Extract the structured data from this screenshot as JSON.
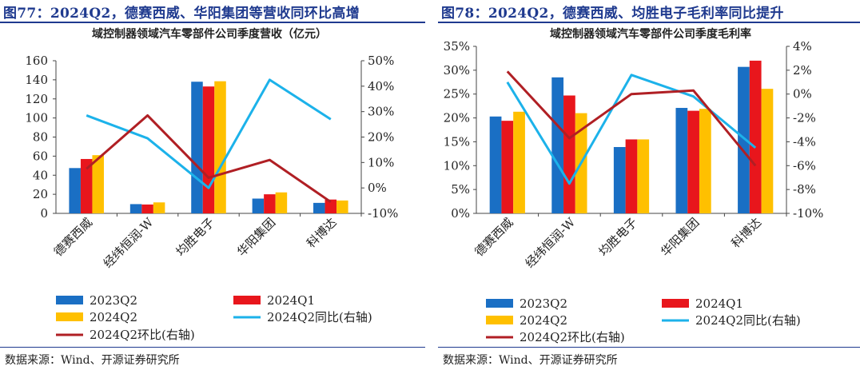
{
  "colors": {
    "accent": "#1f3a8f",
    "q2_2023": "#1a6fc4",
    "q1_2024": "#e8161c",
    "q2_2024": "#ffc000",
    "yoy": "#1cb2ea",
    "qoq": "#b01f24"
  },
  "charts": [
    {
      "fig_title": "图77：2024Q2，德赛西威、华阳集团等营收同环比高增",
      "source": "数据来源：Wind、开源证券研究所",
      "chart_data": {
        "type": "bar",
        "title": "域控制器领域汽车零部件公司季度营收（亿元）",
        "categories": [
          "德赛西威",
          "经纬恒润-W",
          "均胜电子",
          "华阳集团",
          "科博达"
        ],
        "left_axis": {
          "min": 0,
          "max": 160,
          "step": 20,
          "ticks": [
            "0",
            "20",
            "40",
            "60",
            "80",
            "100",
            "120",
            "140",
            "160"
          ]
        },
        "right_axis": {
          "min": -10,
          "max": 50,
          "step": 10,
          "ticks": [
            "-10%",
            "0%",
            "10%",
            "20%",
            "30%",
            "40%",
            "50%"
          ]
        },
        "bar_series": [
          {
            "name": "2023Q2",
            "values": [
              47.5,
              9.7,
              138,
              15.5,
              11
            ]
          },
          {
            "name": "2024Q1",
            "values": [
              57,
              9.3,
              133,
              20,
              14.5
            ]
          },
          {
            "name": "2024Q2",
            "values": [
              61,
              11.5,
              138.5,
              22,
              13.5
            ]
          }
        ],
        "line_series": [
          {
            "name": "2024Q2同比(右轴)",
            "values": [
              28.5,
              19.5,
              0,
              42.5,
              27
            ]
          },
          {
            "name": "2024Q2环比(右轴)",
            "values": [
              7.5,
              28.5,
              4,
              11,
              -5.5
            ]
          }
        ],
        "legend": [
          "2023Q2",
          "2024Q1",
          "2024Q2",
          "2024Q2同比(右轴)",
          "2024Q2环比(右轴)"
        ],
        "legend_position": "bottom",
        "grid": false
      }
    },
    {
      "fig_title": "图78：2024Q2，德赛西威、均胜电子毛利率同比提升",
      "source": "数据来源：Wind、开源证券研究所",
      "chart_data": {
        "type": "bar",
        "title": "域控制器领域汽车零部件公司季度毛利率",
        "categories": [
          "德赛西威",
          "经纬恒润-W",
          "均胜电子",
          "华阳集团",
          "科博达"
        ],
        "left_axis": {
          "min": 0,
          "max": 35,
          "step": 5,
          "ticks": [
            "0%",
            "5%",
            "10%",
            "15%",
            "20%",
            "25%",
            "30%",
            "35%"
          ]
        },
        "right_axis": {
          "min": -10,
          "max": 4,
          "step": 2,
          "ticks": [
            "-10%",
            "-8%",
            "-6%",
            "-4%",
            "-2%",
            "0%",
            "2%",
            "4%"
          ]
        },
        "bar_series": [
          {
            "name": "2023Q2",
            "values": [
              20.3,
              28.5,
              13.9,
              22.1,
              30.7
            ]
          },
          {
            "name": "2024Q1",
            "values": [
              19.4,
              24.7,
              15.5,
              21.5,
              32
            ]
          },
          {
            "name": "2024Q2",
            "values": [
              21.3,
              21,
              15.5,
              21.9,
              26.1
            ]
          }
        ],
        "line_series": [
          {
            "name": "2024Q2同比(右轴)",
            "values": [
              1,
              -7.5,
              1.6,
              -0.2,
              -4.5
            ]
          },
          {
            "name": "2024Q2环比(右轴)",
            "values": [
              1.9,
              -3.7,
              0,
              0.3,
              -6
            ]
          }
        ],
        "legend": [
          "2023Q2",
          "2024Q1",
          "2024Q2",
          "2024Q2同比(右轴)",
          "2024Q2环比(右轴)"
        ],
        "legend_position": "bottom",
        "grid": false
      }
    }
  ]
}
